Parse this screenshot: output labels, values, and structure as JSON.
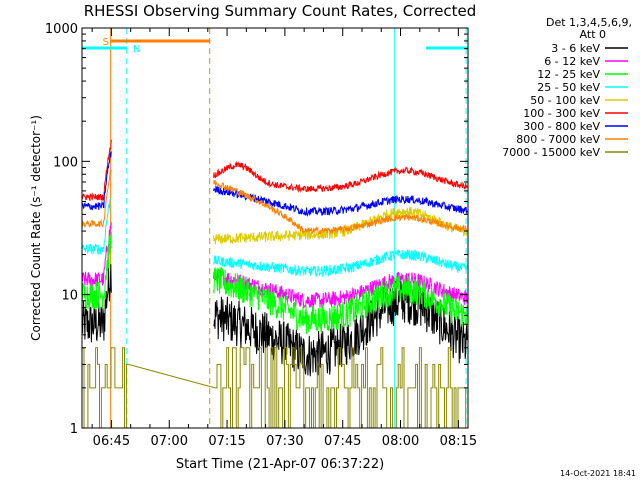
{
  "chart_data": {
    "type": "line",
    "title": "RHESSI Observing Summary Count Rates, Corrected",
    "xlabel": "Start Time (21-Apr-07 06:37:22)",
    "ylabel": "Corrected Count Rate (s⁻¹ detector⁻¹)",
    "yscale": "log",
    "ylim": [
      1,
      1000
    ],
    "xlim": [
      37.37,
      137.5
    ],
    "y_tick_labels": [
      "1",
      "10",
      "100",
      "1000"
    ],
    "x_tick_labels": [
      "06:45",
      "07:00",
      "07:15",
      "07:30",
      "07:45",
      "08:00",
      "08:15"
    ],
    "x_ticks": [
      45,
      60,
      75,
      90,
      105,
      120,
      135
    ],
    "legend_header": [
      "Det 1,3,4,5,6,9,",
      "Att 0"
    ],
    "timestamp": "14-Oct-2021 18:41",
    "series": [
      {
        "name": "3 - 6 keV",
        "color": "#000000"
      },
      {
        "name": "6 - 12 keV",
        "color": "#ff00ff"
      },
      {
        "name": "12 - 25 keV",
        "color": "#00ff00"
      },
      {
        "name": "25 - 50 keV",
        "color": "#00ffff"
      },
      {
        "name": "50 - 100 keV",
        "color": "#ddcc00"
      },
      {
        "name": "100 - 300 keV",
        "color": "#ff0000"
      },
      {
        "name": "300 - 800 keV",
        "color": "#0000ff"
      },
      {
        "name": "800 - 7000 keV",
        "color": "#ff8000"
      },
      {
        "name": "7000 - 15000 keV",
        "color": "#888800"
      }
    ],
    "annotations": [
      {
        "label": "S",
        "color": "#ff8000",
        "x_start": 44.8,
        "x_end": 70.5
      },
      {
        "label": "N",
        "color": "#00ffff",
        "x_start": 37.4,
        "x_end": 49.0
      },
      {
        "label": "",
        "color": "#00ffff",
        "x_start": 126.6,
        "x_end": 137.5
      }
    ],
    "vertical_markers": [
      {
        "x": 44.8,
        "color": "#ff8000",
        "style": "solid"
      },
      {
        "x": 49.0,
        "color": "#00ffff",
        "style": "dashed"
      },
      {
        "x": 70.5,
        "color": "#ff8000",
        "style": "dashed"
      },
      {
        "x": 118.5,
        "color": "#00ffff",
        "style": "solid"
      },
      {
        "x": 137.0,
        "color": "#00ffff",
        "style": "dashed"
      }
    ]
  }
}
